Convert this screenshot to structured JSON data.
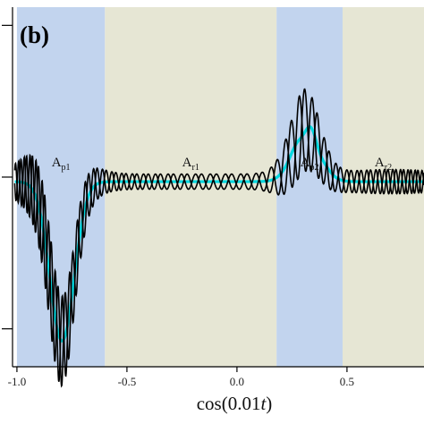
{
  "chart_data": {
    "type": "line",
    "panel_label": "(b)",
    "xlabel_prefix": "cos(0.01",
    "xlabel_var": "t",
    "xlabel_suffix": ")",
    "xlim": [
      -1.02,
      0.85
    ],
    "ylim": [
      -1.25,
      1.12
    ],
    "x_ticks": [
      -1.0,
      -0.5,
      0.0,
      0.5
    ],
    "x_tick_labels": [
      "-1.0",
      "-0.5",
      "0.0",
      "0.5"
    ],
    "y_ticks": [
      -1,
      0,
      1
    ],
    "regions": [
      {
        "label": "A",
        "sub": "p1",
        "x0": -1.0,
        "x1": -0.6,
        "color": "#c2d4ee"
      },
      {
        "label": "A",
        "sub": "r1",
        "x0": -0.6,
        "x1": 0.18,
        "color": "#e6e6d4"
      },
      {
        "label": "A",
        "sub": "p2",
        "x0": 0.18,
        "x1": 0.48,
        "color": "#c2d4ee"
      },
      {
        "label": "A",
        "sub": "r2",
        "x0": 0.48,
        "x1": 0.85,
        "color": "#e6e6d4"
      }
    ],
    "series": [
      {
        "color": "#00d8e0",
        "style": "smooth"
      },
      {
        "color": "#000000",
        "style": "envelope-upper"
      },
      {
        "color": "#000000",
        "style": "envelope-lower"
      }
    ]
  }
}
